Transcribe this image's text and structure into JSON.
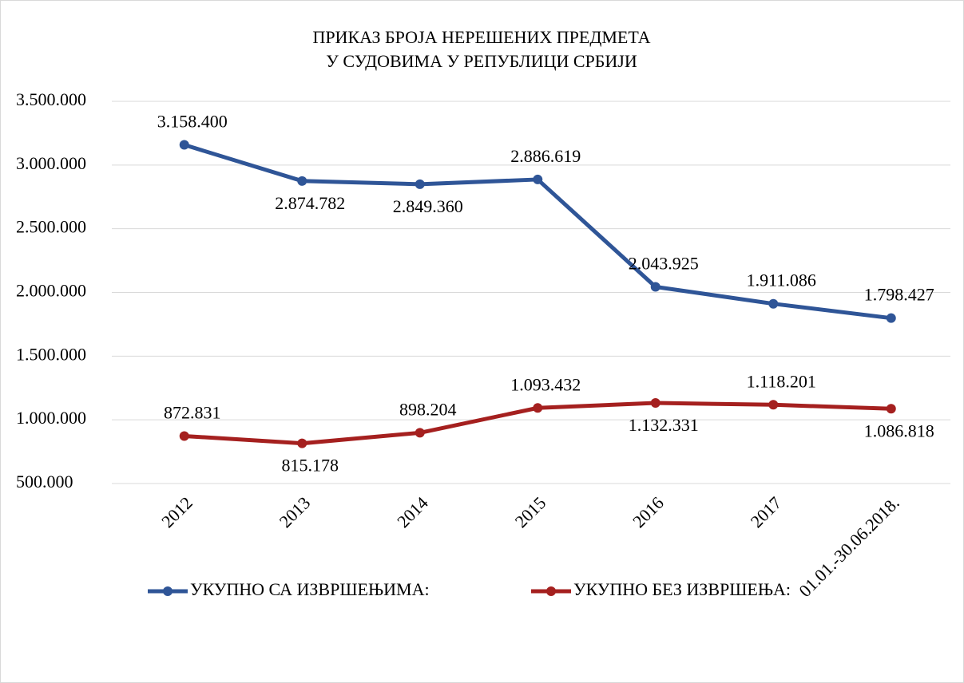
{
  "chart_data": {
    "type": "line",
    "title": [
      "ПРИКАЗ БРОЈА НЕРЕШЕНИХ ПРЕДМЕТА",
      "У СУДОВИМА У РЕПУБЛИЦИ СРБИЈИ"
    ],
    "categories": [
      "2012",
      "2013",
      "2014",
      "2015",
      "2016",
      "2017",
      "01.01.-30.06.2018."
    ],
    "series": [
      {
        "name": "УКУПНО СА ИЗВРШЕЊИМА:",
        "color": "#2f5597",
        "values": [
          3158400,
          2874782,
          2849360,
          2886619,
          2043925,
          1911086,
          1798427
        ],
        "value_labels": [
          "3.158.400",
          "2.874.782",
          "2.849.360",
          "2.886.619",
          "2.043.925",
          "1.911.086",
          "1.798.427"
        ]
      },
      {
        "name": "УКУПНО БЕЗ ИЗВРШЕЊА:",
        "color": "#a5201f",
        "values": [
          872831,
          815178,
          898204,
          1093432,
          1132331,
          1118201,
          1086818
        ],
        "value_labels": [
          "872.831",
          "815.178",
          "898.204",
          "1.093.432",
          "1.132.331",
          "1.118.201",
          "1.086.818"
        ]
      }
    ],
    "ylim": [
      500000,
      3500000
    ],
    "yticks": [
      {
        "value": 500000,
        "label": "500.000"
      },
      {
        "value": 1000000,
        "label": "1.000.000"
      },
      {
        "value": 1500000,
        "label": "1.500.000"
      },
      {
        "value": 2000000,
        "label": "2.000.000"
      },
      {
        "value": 2500000,
        "label": "2.500.000"
      },
      {
        "value": 3000000,
        "label": "3.000.000"
      },
      {
        "value": 3500000,
        "label": "3.500.000"
      }
    ],
    "grid": true,
    "legend": "bottom"
  }
}
